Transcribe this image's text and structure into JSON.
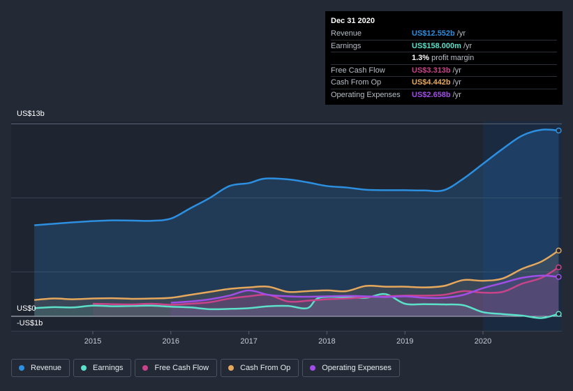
{
  "chart_data": {
    "type": "area",
    "y_axis": {
      "top_label": "US$13b",
      "zero_label": "US$0",
      "bottom_label": "-US$1b",
      "ylim": [
        -1,
        13
      ]
    },
    "x_ticks": [
      "2015",
      "2016",
      "2017",
      "2018",
      "2019",
      "2020"
    ],
    "forecast_shade_from": 2020.0,
    "series": [
      {
        "name": "Revenue",
        "key": "revenue",
        "color": "#2d8fe0",
        "points": [
          [
            2014.25,
            6.15
          ],
          [
            2014.5,
            6.25
          ],
          [
            2014.75,
            6.35
          ],
          [
            2015.0,
            6.43
          ],
          [
            2015.25,
            6.48
          ],
          [
            2015.5,
            6.47
          ],
          [
            2015.75,
            6.45
          ],
          [
            2016.0,
            6.6
          ],
          [
            2016.25,
            7.3
          ],
          [
            2016.5,
            8.0
          ],
          [
            2016.75,
            8.8
          ],
          [
            2017.0,
            9.0
          ],
          [
            2017.2,
            9.3
          ],
          [
            2017.5,
            9.25
          ],
          [
            2017.75,
            9.05
          ],
          [
            2018.0,
            8.8
          ],
          [
            2018.25,
            8.7
          ],
          [
            2018.5,
            8.55
          ],
          [
            2018.75,
            8.52
          ],
          [
            2019.0,
            8.52
          ],
          [
            2019.25,
            8.5
          ],
          [
            2019.5,
            8.52
          ],
          [
            2019.75,
            9.3
          ],
          [
            2020.0,
            10.3
          ],
          [
            2020.25,
            11.3
          ],
          [
            2020.5,
            12.2
          ],
          [
            2020.75,
            12.6
          ],
          [
            2020.97,
            12.55
          ]
        ]
      },
      {
        "name": "Earnings",
        "key": "earnings",
        "color": "#5ce0c9",
        "points": [
          [
            2014.25,
            0.55
          ],
          [
            2014.5,
            0.62
          ],
          [
            2014.75,
            0.6
          ],
          [
            2015.0,
            0.72
          ],
          [
            2015.25,
            0.68
          ],
          [
            2015.5,
            0.7
          ],
          [
            2015.75,
            0.72
          ],
          [
            2016.0,
            0.65
          ],
          [
            2016.25,
            0.6
          ],
          [
            2016.5,
            0.48
          ],
          [
            2016.75,
            0.5
          ],
          [
            2017.0,
            0.55
          ],
          [
            2017.25,
            0.68
          ],
          [
            2017.5,
            0.7
          ],
          [
            2017.75,
            0.55
          ],
          [
            2017.9,
            1.25
          ],
          [
            2018.25,
            1.3
          ],
          [
            2018.5,
            1.25
          ],
          [
            2018.75,
            1.5
          ],
          [
            2019.0,
            0.85
          ],
          [
            2019.25,
            0.82
          ],
          [
            2019.5,
            0.8
          ],
          [
            2019.75,
            0.75
          ],
          [
            2020.0,
            0.28
          ],
          [
            2020.25,
            0.15
          ],
          [
            2020.5,
            0.05
          ],
          [
            2020.75,
            -0.12
          ],
          [
            2020.97,
            0.16
          ]
        ]
      },
      {
        "name": "Free Cash Flow",
        "key": "fcf",
        "color": "#c9438a",
        "points": [
          [
            2015.0,
            0.85
          ],
          [
            2015.25,
            0.82
          ],
          [
            2015.5,
            0.8
          ],
          [
            2015.75,
            0.85
          ],
          [
            2016.0,
            0.78
          ],
          [
            2016.25,
            0.85
          ],
          [
            2016.5,
            0.95
          ],
          [
            2016.75,
            1.2
          ],
          [
            2017.0,
            1.35
          ],
          [
            2017.25,
            1.45
          ],
          [
            2017.5,
            1.0
          ],
          [
            2017.75,
            1.05
          ],
          [
            2018.0,
            1.15
          ],
          [
            2018.25,
            1.2
          ],
          [
            2018.5,
            1.3
          ],
          [
            2018.75,
            1.35
          ],
          [
            2019.0,
            1.4
          ],
          [
            2019.25,
            1.4
          ],
          [
            2019.5,
            1.45
          ],
          [
            2019.75,
            1.7
          ],
          [
            2020.0,
            1.6
          ],
          [
            2020.25,
            1.65
          ],
          [
            2020.5,
            2.2
          ],
          [
            2020.75,
            2.6
          ],
          [
            2020.97,
            3.31
          ]
        ]
      },
      {
        "name": "Cash From Op",
        "key": "cfo",
        "color": "#e6a85c",
        "points": [
          [
            2014.25,
            1.1
          ],
          [
            2014.5,
            1.2
          ],
          [
            2014.75,
            1.15
          ],
          [
            2015.0,
            1.2
          ],
          [
            2015.25,
            1.22
          ],
          [
            2015.5,
            1.18
          ],
          [
            2015.75,
            1.2
          ],
          [
            2016.0,
            1.25
          ],
          [
            2016.25,
            1.45
          ],
          [
            2016.5,
            1.65
          ],
          [
            2016.75,
            1.85
          ],
          [
            2017.0,
            1.95
          ],
          [
            2017.25,
            2.0
          ],
          [
            2017.5,
            1.65
          ],
          [
            2017.75,
            1.7
          ],
          [
            2018.0,
            1.75
          ],
          [
            2018.25,
            1.7
          ],
          [
            2018.5,
            2.05
          ],
          [
            2018.75,
            2.0
          ],
          [
            2019.0,
            2.0
          ],
          [
            2019.25,
            1.95
          ],
          [
            2019.5,
            2.05
          ],
          [
            2019.75,
            2.45
          ],
          [
            2020.0,
            2.4
          ],
          [
            2020.25,
            2.55
          ],
          [
            2020.5,
            3.2
          ],
          [
            2020.75,
            3.7
          ],
          [
            2020.97,
            4.44
          ]
        ]
      },
      {
        "name": "Operating Expenses",
        "key": "opex",
        "color": "#a14ee6",
        "points": [
          [
            2016.0,
            0.92
          ],
          [
            2016.25,
            1.0
          ],
          [
            2016.5,
            1.15
          ],
          [
            2016.75,
            1.4
          ],
          [
            2017.0,
            1.75
          ],
          [
            2017.25,
            1.45
          ],
          [
            2017.5,
            1.35
          ],
          [
            2017.75,
            1.32
          ],
          [
            2018.0,
            1.35
          ],
          [
            2018.25,
            1.38
          ],
          [
            2018.5,
            1.35
          ],
          [
            2018.75,
            1.3
          ],
          [
            2019.0,
            1.35
          ],
          [
            2019.25,
            1.25
          ],
          [
            2019.5,
            1.25
          ],
          [
            2019.75,
            1.45
          ],
          [
            2020.0,
            1.9
          ],
          [
            2020.25,
            2.25
          ],
          [
            2020.5,
            2.6
          ],
          [
            2020.75,
            2.75
          ],
          [
            2020.97,
            2.66
          ]
        ]
      }
    ]
  },
  "tooltip": {
    "date": "Dec 31 2020",
    "rows": [
      {
        "label": "Revenue",
        "value": "US$12.552b",
        "unit": "/yr",
        "color": "#2d8fe0"
      },
      {
        "label": "Earnings",
        "value": "US$158.000m",
        "unit": "/yr",
        "color": "#5ce0c9"
      },
      {
        "label": "",
        "value": "1.3%",
        "unit": "profit margin",
        "color": "#ffffff"
      },
      {
        "label": "Free Cash Flow",
        "value": "US$3.313b",
        "unit": "/yr",
        "color": "#c9438a"
      },
      {
        "label": "Cash From Op",
        "value": "US$4.442b",
        "unit": "/yr",
        "color": "#e6a85c"
      },
      {
        "label": "Operating Expenses",
        "value": "US$2.658b",
        "unit": "/yr",
        "color": "#a14ee6"
      }
    ]
  },
  "legend": [
    {
      "label": "Revenue",
      "color": "#2d8fe0"
    },
    {
      "label": "Earnings",
      "color": "#5ce0c9"
    },
    {
      "label": "Free Cash Flow",
      "color": "#c9438a"
    },
    {
      "label": "Cash From Op",
      "color": "#e6a85c"
    },
    {
      "label": "Operating Expenses",
      "color": "#a14ee6"
    }
  ]
}
